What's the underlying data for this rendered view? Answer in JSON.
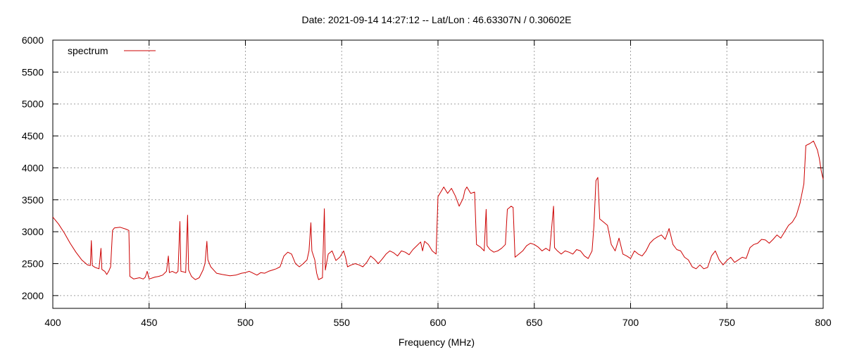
{
  "chart_data": {
    "type": "line",
    "title": "Date: 2021-09-14 14:27:12  --  Lat/Lon : 46.63307N / 0.30602E",
    "xlabel": "Frequency (MHz)",
    "ylabel": "",
    "xlim": [
      400,
      800
    ],
    "ylim": [
      1800,
      6000
    ],
    "xticks": [
      400,
      450,
      500,
      550,
      600,
      650,
      700,
      750,
      800
    ],
    "yticks": [
      2000,
      2500,
      3000,
      3500,
      4000,
      4500,
      5000,
      5500,
      6000
    ],
    "grid": true,
    "legend_position": "top-left",
    "series": [
      {
        "name": "spectrum",
        "color": "#cc0000",
        "points": [
          [
            400,
            3230
          ],
          [
            403,
            3120
          ],
          [
            406,
            2980
          ],
          [
            409,
            2820
          ],
          [
            412,
            2680
          ],
          [
            415,
            2560
          ],
          [
            418,
            2480
          ],
          [
            419.5,
            2470
          ],
          [
            420,
            2860
          ],
          [
            420.5,
            2470
          ],
          [
            422,
            2440
          ],
          [
            424,
            2420
          ],
          [
            425,
            2740
          ],
          [
            425.5,
            2410
          ],
          [
            427,
            2380
          ],
          [
            428,
            2330
          ],
          [
            429,
            2380
          ],
          [
            430,
            2450
          ],
          [
            431,
            3020
          ],
          [
            432,
            3060
          ],
          [
            435,
            3070
          ],
          [
            438,
            3040
          ],
          [
            439.5,
            3020
          ],
          [
            440,
            2300
          ],
          [
            442,
            2260
          ],
          [
            445,
            2280
          ],
          [
            447,
            2260
          ],
          [
            448,
            2290
          ],
          [
            449,
            2380
          ],
          [
            450,
            2260
          ],
          [
            453,
            2290
          ],
          [
            455,
            2300
          ],
          [
            457,
            2320
          ],
          [
            459,
            2380
          ],
          [
            460,
            2620
          ],
          [
            460.5,
            2360
          ],
          [
            462,
            2380
          ],
          [
            464,
            2350
          ],
          [
            465,
            2380
          ],
          [
            466,
            3160
          ],
          [
            466.5,
            2380
          ],
          [
            468,
            2370
          ],
          [
            469,
            2360
          ],
          [
            470,
            3260
          ],
          [
            470.5,
            2400
          ],
          [
            472,
            2300
          ],
          [
            474,
            2250
          ],
          [
            476,
            2280
          ],
          [
            478,
            2400
          ],
          [
            479,
            2500
          ],
          [
            480,
            2850
          ],
          [
            480.5,
            2560
          ],
          [
            482,
            2450
          ],
          [
            485,
            2350
          ],
          [
            488,
            2330
          ],
          [
            492,
            2310
          ],
          [
            495,
            2320
          ],
          [
            498,
            2350
          ],
          [
            500,
            2360
          ],
          [
            502,
            2380
          ],
          [
            504,
            2350
          ],
          [
            506,
            2320
          ],
          [
            508,
            2360
          ],
          [
            510,
            2350
          ],
          [
            512,
            2380
          ],
          [
            514,
            2400
          ],
          [
            516,
            2420
          ],
          [
            518,
            2450
          ],
          [
            520,
            2620
          ],
          [
            522,
            2680
          ],
          [
            524,
            2650
          ],
          [
            526,
            2500
          ],
          [
            528,
            2450
          ],
          [
            530,
            2500
          ],
          [
            532,
            2560
          ],
          [
            533,
            2700
          ],
          [
            534,
            3140
          ],
          [
            534.5,
            2700
          ],
          [
            536,
            2560
          ],
          [
            537,
            2350
          ],
          [
            538,
            2250
          ],
          [
            540,
            2280
          ],
          [
            541,
            3360
          ],
          [
            541.5,
            2400
          ],
          [
            543,
            2650
          ],
          [
            545,
            2700
          ],
          [
            547,
            2550
          ],
          [
            549,
            2600
          ],
          [
            551,
            2700
          ],
          [
            552,
            2600
          ],
          [
            553,
            2450
          ],
          [
            555,
            2480
          ],
          [
            557,
            2500
          ],
          [
            559,
            2480
          ],
          [
            561,
            2450
          ],
          [
            563,
            2520
          ],
          [
            565,
            2620
          ],
          [
            567,
            2570
          ],
          [
            569,
            2500
          ],
          [
            571,
            2570
          ],
          [
            573,
            2650
          ],
          [
            575,
            2700
          ],
          [
            577,
            2670
          ],
          [
            579,
            2620
          ],
          [
            581,
            2700
          ],
          [
            583,
            2680
          ],
          [
            585,
            2640
          ],
          [
            587,
            2720
          ],
          [
            589,
            2780
          ],
          [
            591,
            2840
          ],
          [
            592,
            2700
          ],
          [
            593,
            2850
          ],
          [
            595,
            2800
          ],
          [
            597,
            2700
          ],
          [
            599,
            2650
          ],
          [
            600,
            3550
          ],
          [
            602,
            3650
          ],
          [
            603,
            3700
          ],
          [
            605,
            3600
          ],
          [
            607,
            3680
          ],
          [
            609,
            3560
          ],
          [
            611,
            3400
          ],
          [
            613,
            3520
          ],
          [
            614,
            3650
          ],
          [
            615,
            3700
          ],
          [
            617,
            3600
          ],
          [
            619,
            3620
          ],
          [
            620,
            2800
          ],
          [
            622,
            2760
          ],
          [
            624,
            2700
          ],
          [
            625,
            3350
          ],
          [
            625.5,
            2780
          ],
          [
            627,
            2720
          ],
          [
            629,
            2680
          ],
          [
            631,
            2700
          ],
          [
            633,
            2740
          ],
          [
            635,
            2800
          ],
          [
            636,
            3350
          ],
          [
            638,
            3400
          ],
          [
            639,
            3380
          ],
          [
            640,
            2600
          ],
          [
            642,
            2650
          ],
          [
            644,
            2700
          ],
          [
            646,
            2780
          ],
          [
            648,
            2820
          ],
          [
            650,
            2800
          ],
          [
            652,
            2760
          ],
          [
            654,
            2700
          ],
          [
            656,
            2740
          ],
          [
            658,
            2700
          ],
          [
            660,
            3400
          ],
          [
            660.5,
            2750
          ],
          [
            662,
            2700
          ],
          [
            664,
            2650
          ],
          [
            666,
            2700
          ],
          [
            668,
            2680
          ],
          [
            670,
            2650
          ],
          [
            672,
            2720
          ],
          [
            674,
            2700
          ],
          [
            676,
            2620
          ],
          [
            678,
            2580
          ],
          [
            680,
            2700
          ],
          [
            681,
            3100
          ],
          [
            682,
            3800
          ],
          [
            683,
            3850
          ],
          [
            684,
            3200
          ],
          [
            686,
            3150
          ],
          [
            688,
            3100
          ],
          [
            690,
            2800
          ],
          [
            692,
            2700
          ],
          [
            694,
            2900
          ],
          [
            696,
            2650
          ],
          [
            698,
            2620
          ],
          [
            700,
            2580
          ],
          [
            702,
            2700
          ],
          [
            704,
            2650
          ],
          [
            706,
            2620
          ],
          [
            708,
            2700
          ],
          [
            710,
            2820
          ],
          [
            712,
            2880
          ],
          [
            714,
            2920
          ],
          [
            716,
            2950
          ],
          [
            718,
            2880
          ],
          [
            720,
            3050
          ],
          [
            722,
            2800
          ],
          [
            724,
            2720
          ],
          [
            726,
            2700
          ],
          [
            728,
            2600
          ],
          [
            730,
            2560
          ],
          [
            732,
            2450
          ],
          [
            734,
            2420
          ],
          [
            736,
            2480
          ],
          [
            738,
            2420
          ],
          [
            740,
            2440
          ],
          [
            742,
            2620
          ],
          [
            744,
            2700
          ],
          [
            746,
            2560
          ],
          [
            748,
            2480
          ],
          [
            750,
            2550
          ],
          [
            752,
            2600
          ],
          [
            754,
            2520
          ],
          [
            756,
            2560
          ],
          [
            758,
            2600
          ],
          [
            760,
            2580
          ],
          [
            762,
            2750
          ],
          [
            764,
            2800
          ],
          [
            766,
            2820
          ],
          [
            768,
            2880
          ],
          [
            770,
            2870
          ],
          [
            772,
            2820
          ],
          [
            774,
            2880
          ],
          [
            776,
            2950
          ],
          [
            778,
            2900
          ],
          [
            780,
            3000
          ],
          [
            782,
            3100
          ],
          [
            784,
            3150
          ],
          [
            786,
            3250
          ],
          [
            788,
            3450
          ],
          [
            790,
            3750
          ],
          [
            791,
            4350
          ],
          [
            793,
            4380
          ],
          [
            795,
            4420
          ],
          [
            797,
            4280
          ],
          [
            798,
            4150
          ],
          [
            799,
            3950
          ],
          [
            800,
            3820
          ]
        ]
      }
    ]
  }
}
